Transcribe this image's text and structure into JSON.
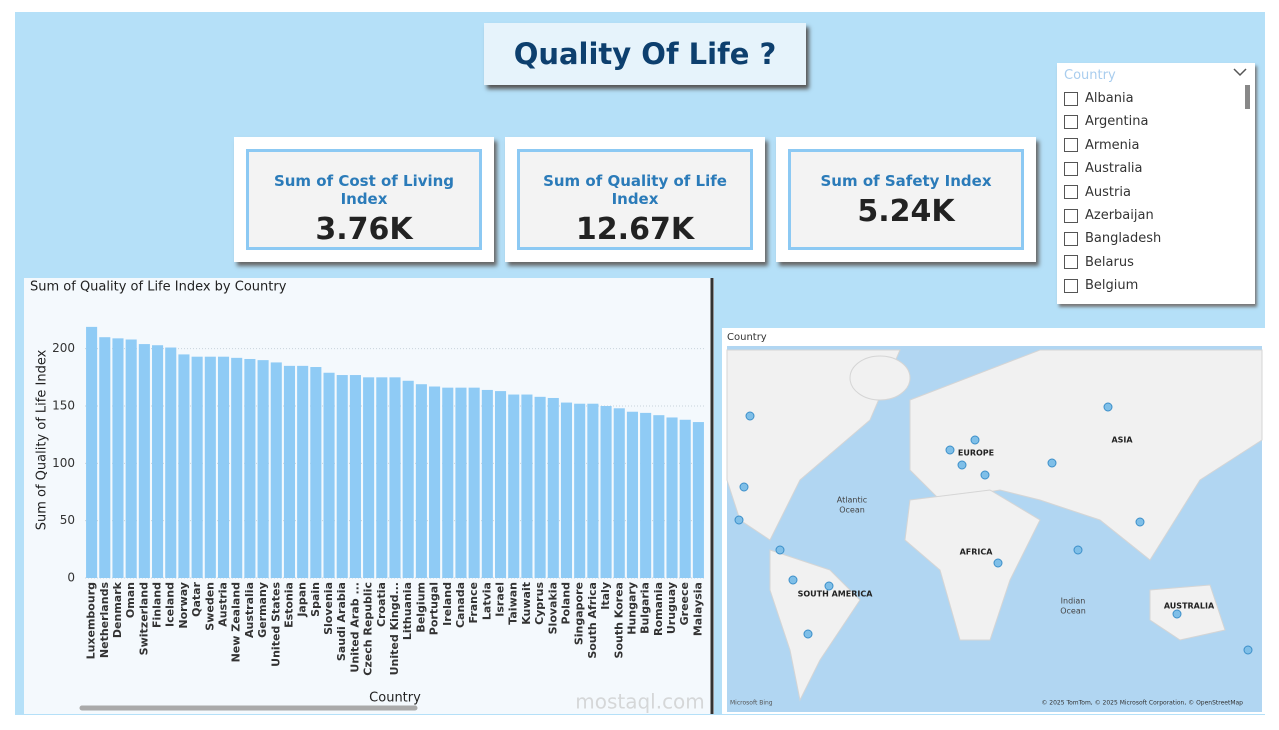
{
  "header": {
    "title": "Quality Of Life ?"
  },
  "cards": [
    {
      "label": "Sum of Cost of Living Index",
      "value": "3.76K"
    },
    {
      "label": "Sum of Quality of Life Index",
      "value": "12.67K"
    },
    {
      "label": "Sum of Safety Index",
      "value": "5.24K"
    }
  ],
  "slicer": {
    "title": "Country",
    "items": [
      "Albania",
      "Argentina",
      "Armenia",
      "Australia",
      "Austria",
      "Azerbaijan",
      "Bangladesh",
      "Belarus",
      "Belgium"
    ]
  },
  "chart_data": {
    "type": "bar",
    "title": "Sum of Quality of Life Index by Country",
    "x_label": "Country",
    "y_label": "Sum of Quality of Life Index",
    "categories": [
      "Luxembourg",
      "Netherlands",
      "Denmark",
      "Oman",
      "Switzerland",
      "Finland",
      "Iceland",
      "Norway",
      "Qatar",
      "Sweden",
      "Austria",
      "New Zealand",
      "Australia",
      "Germany",
      "United States",
      "Estonia",
      "Japan",
      "Spain",
      "Slovenia",
      "Saudi Arabia",
      "United Arab ...",
      "Czech Republic",
      "Croatia",
      "United Kingd...",
      "Lithuania",
      "Belgium",
      "Portugal",
      "Ireland",
      "Canada",
      "France",
      "Latvia",
      "Israel",
      "Taiwan",
      "Kuwait",
      "Cyprus",
      "Slovakia",
      "Poland",
      "Singapore",
      "South Africa",
      "Italy",
      "South Korea",
      "Hungary",
      "Bulgaria",
      "Romania",
      "Uruguay",
      "Greece",
      "Malaysia"
    ],
    "values": [
      219,
      210,
      209,
      208,
      204,
      203,
      201,
      195,
      193,
      193,
      193,
      192,
      191,
      190,
      188,
      185,
      185,
      184,
      179,
      177,
      177,
      175,
      175,
      175,
      172,
      169,
      167,
      166,
      166,
      166,
      164,
      163,
      160,
      160,
      158,
      157,
      153,
      152,
      152,
      150,
      148,
      145,
      144,
      142,
      140,
      138,
      136
    ],
    "color": "#8fcbf5",
    "ylim": [
      0,
      225
    ],
    "yticks": [
      0,
      50,
      100,
      150,
      200
    ],
    "grid": true
  },
  "map": {
    "title": "Country",
    "labels": {
      "atlantic_1": "Atlantic",
      "atlantic_2": "Ocean",
      "europe": "EUROPE",
      "asia": "ASIA",
      "africa": "AFRICA",
      "south_america": "SOUTH AMERICA",
      "indian_1": "Indian",
      "indian_2": "Ocean",
      "australia": "AUSTRALIA"
    },
    "brand": "Microsoft Bing",
    "copyright": "© 2025 TomTom, © 2025 Microsoft Corporation, © OpenStreetMap"
  },
  "watermark": "mostaql.com"
}
